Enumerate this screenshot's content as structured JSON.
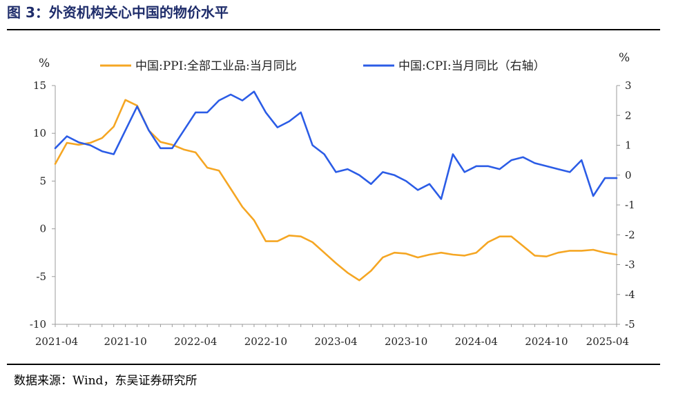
{
  "figure": {
    "title": "图 3：外资机构关心中国的物价水平",
    "source": "数据来源：Wind，东吴证券研究所"
  },
  "chart_data": {
    "type": "line",
    "title": "",
    "x": [
      "2021-04",
      "2021-05",
      "2021-06",
      "2021-07",
      "2021-08",
      "2021-09",
      "2021-10",
      "2021-11",
      "2021-12",
      "2022-01",
      "2022-02",
      "2022-03",
      "2022-04",
      "2022-05",
      "2022-06",
      "2022-07",
      "2022-08",
      "2022-09",
      "2022-10",
      "2022-11",
      "2022-12",
      "2023-01",
      "2023-02",
      "2023-03",
      "2023-04",
      "2023-05",
      "2023-06",
      "2023-07",
      "2023-08",
      "2023-09",
      "2023-10",
      "2023-11",
      "2023-12",
      "2024-01",
      "2024-02",
      "2024-03",
      "2024-04",
      "2024-05",
      "2024-06",
      "2024-07",
      "2024-08",
      "2024-09",
      "2024-10",
      "2024-11",
      "2024-12",
      "2025-01",
      "2025-02",
      "2025-03",
      "2025-04"
    ],
    "x_tick_labels": [
      "2021-04",
      "2021-10",
      "2022-04",
      "2022-10",
      "2023-04",
      "2023-10",
      "2024-04",
      "2024-10",
      "2025-04"
    ],
    "left_axis": {
      "unit": "%",
      "ylim": [
        -10,
        15
      ],
      "ticks": [
        "15",
        "10",
        "5",
        "0",
        "-5",
        "-10"
      ]
    },
    "right_axis": {
      "unit": "%",
      "ylim": [
        -5,
        3
      ],
      "ticks": [
        "3",
        "2",
        "1",
        "0",
        "-1",
        "-2",
        "-3",
        "-4",
        "-5"
      ]
    },
    "series": [
      {
        "name": "中国:PPI:全部工业品:当月同比",
        "axis": "left",
        "color": "#f5a623",
        "values": [
          6.8,
          9.0,
          8.8,
          9.0,
          9.5,
          10.7,
          13.5,
          12.9,
          10.3,
          9.1,
          8.8,
          8.3,
          8.0,
          6.4,
          6.1,
          4.2,
          2.3,
          0.9,
          -1.3,
          -1.3,
          -0.7,
          -0.8,
          -1.4,
          -2.5,
          -3.6,
          -4.6,
          -5.4,
          -4.4,
          -3.0,
          -2.5,
          -2.6,
          -3.0,
          -2.7,
          -2.5,
          -2.7,
          -2.8,
          -2.5,
          -1.4,
          -0.8,
          -0.8,
          -1.8,
          -2.8,
          -2.9,
          -2.5,
          -2.3,
          -2.3,
          -2.2,
          -2.5,
          -2.7
        ]
      },
      {
        "name": "中国:CPI:当月同比（右轴）",
        "axis": "right",
        "color": "#2b5ce6",
        "values": [
          0.9,
          1.3,
          1.1,
          1.0,
          0.8,
          0.7,
          1.5,
          2.3,
          1.5,
          0.9,
          0.9,
          1.5,
          2.1,
          2.1,
          2.5,
          2.7,
          2.5,
          2.8,
          2.1,
          1.6,
          1.8,
          2.1,
          1.0,
          0.7,
          0.1,
          0.2,
          0.0,
          -0.3,
          0.1,
          0.0,
          -0.2,
          -0.5,
          -0.3,
          -0.8,
          0.7,
          0.1,
          0.3,
          0.3,
          0.2,
          0.5,
          0.6,
          0.4,
          0.3,
          0.2,
          0.1,
          0.5,
          -0.7,
          -0.1,
          -0.1
        ]
      }
    ],
    "legend_position": "top",
    "grid": false
  }
}
